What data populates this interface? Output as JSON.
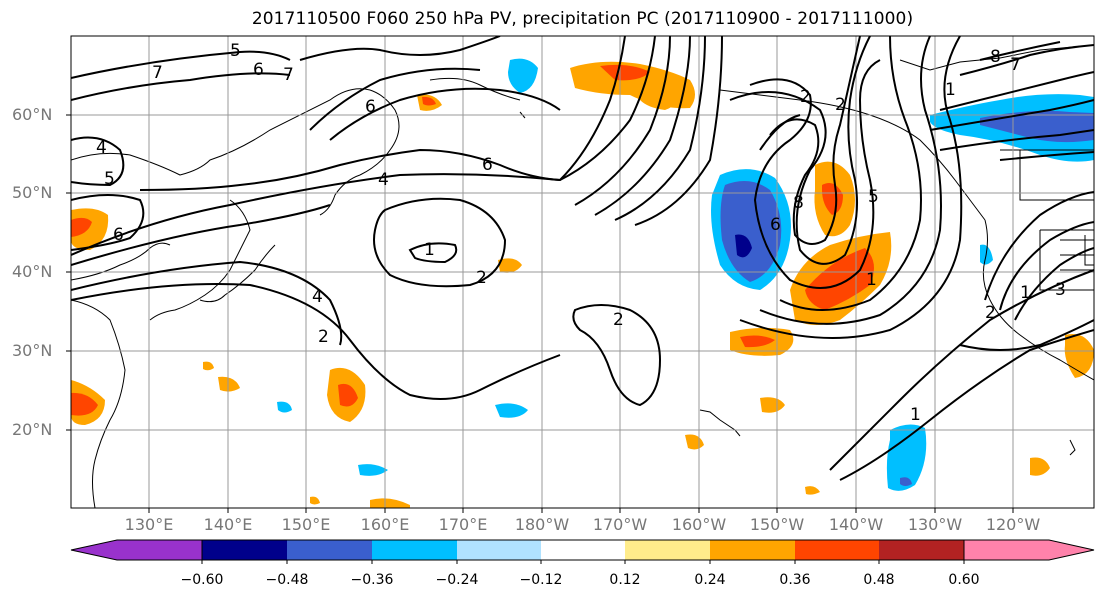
{
  "title": "2017110500 F060 250 hPa PV, precipitation PC (2017110900 - 2017111000)",
  "lat_labels": [
    "60°N",
    "50°N",
    "40°N",
    "30°N",
    "20°N"
  ],
  "lon_labels": [
    "130°E",
    "140°E",
    "150°E",
    "160°E",
    "170°E",
    "180°W",
    "170°W",
    "160°W",
    "150°W",
    "140°W",
    "130°W",
    "120°W"
  ],
  "colorbar": {
    "colors": [
      "#9932cc",
      "#00008b",
      "#3a5fcd",
      "#00bfff",
      "#b0e2ff",
      "#ffffff",
      "#ffec8b",
      "#ffa500",
      "#ff4500",
      "#b22222",
      "#ff82ab"
    ],
    "ticks": [
      "−0.60",
      "−0.48",
      "−0.36",
      "−0.24",
      "−0.12",
      "0.12",
      "0.24",
      "0.36",
      "0.48",
      "0.60"
    ]
  },
  "contour_labels": [
    "5",
    "6",
    "7",
    "6",
    "7",
    "4",
    "5",
    "6",
    "4",
    "6",
    "1",
    "2",
    "2",
    "2",
    "4",
    "2",
    "8",
    "6",
    "2",
    "1",
    "5",
    "8",
    "7",
    "1",
    "1",
    "1",
    "2",
    "3"
  ]
}
